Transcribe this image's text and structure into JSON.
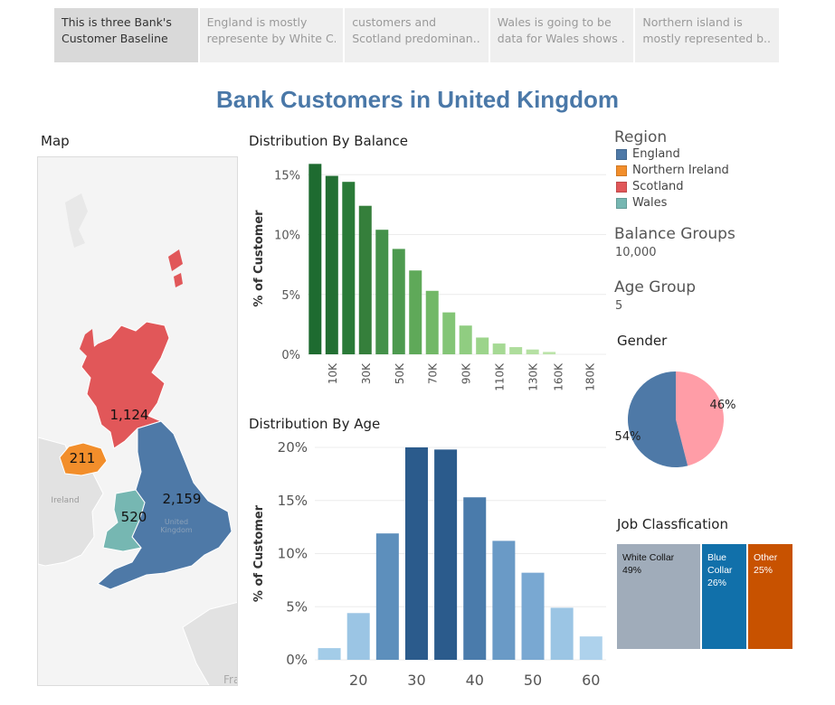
{
  "story_tabs": [
    {
      "line1": "This is three Bank's",
      "line2": "Customer Baseline",
      "active": true
    },
    {
      "line1": "England is mostly",
      "line2": "represente by White C..",
      "active": false
    },
    {
      "line1": "customers and",
      "line2": "Scotland predominan..",
      "active": false
    },
    {
      "line1": "Wales is going to be",
      "line2": "data for Wales shows ..",
      "active": false
    },
    {
      "line1": "Northern island is",
      "line2": "mostly represented b..",
      "active": false
    }
  ],
  "title": "Bank Customers in United Kingdom",
  "map": {
    "title": "Map",
    "labels": {
      "scotland": "1,124",
      "northern_ireland": "211",
      "england": "2,159",
      "wales": "520",
      "ireland": "Ireland",
      "uk_line1": "United",
      "uk_line2": "Kingdom",
      "france": "Fra"
    },
    "colors": {
      "england": "#4e79a7",
      "northern_ireland": "#f28e2b",
      "scotland": "#e15759",
      "wales": "#76b7b2"
    }
  },
  "legend": {
    "region_title": "Region",
    "regions": [
      {
        "name": "England",
        "color": "#4e79a7"
      },
      {
        "name": "Northern Ireland",
        "color": "#f28e2b"
      },
      {
        "name": "Scotland",
        "color": "#e15759"
      },
      {
        "name": "Wales",
        "color": "#76b7b2"
      }
    ],
    "balance_title": "Balance Groups",
    "balance_value": "10,000",
    "age_title": "Age Group",
    "age_value": "5"
  },
  "gender_title": "Gender",
  "job_title": "Job Classfication",
  "chart_data": [
    {
      "type": "bar",
      "title": "Distribution By Balance",
      "ylabel": "% of Customer",
      "ylim": [
        0,
        16
      ],
      "yticks": [
        "0%",
        "5%",
        "10%",
        "15%"
      ],
      "x": [
        0,
        10,
        20,
        30,
        40,
        50,
        60,
        70,
        80,
        90,
        100,
        110,
        120,
        130,
        140
      ],
      "xticklabels": [
        "10K",
        "30K",
        "50K",
        "70K",
        "90K",
        "110K",
        "130K",
        "160K",
        "180K"
      ],
      "values": [
        15.9,
        14.9,
        14.4,
        12.4,
        10.4,
        8.8,
        7.0,
        5.3,
        3.5,
        2.4,
        1.4,
        0.9,
        0.6,
        0.4,
        0.2
      ],
      "colors": [
        "#1e6b30",
        "#236f33",
        "#2a7a38",
        "#357f3b",
        "#44914a",
        "#4d9a4f",
        "#5fa959",
        "#72b867",
        "#83c576",
        "#90cd81",
        "#9cd48b",
        "#a6d994",
        "#aedd9c",
        "#b5e0a3",
        "#bce3aa"
      ]
    },
    {
      "type": "bar",
      "title": "Distribution By Age",
      "ylabel": "% of Customer",
      "ylim": [
        0,
        20
      ],
      "yticks": [
        "0%",
        "5%",
        "10%",
        "15%",
        "20%"
      ],
      "x": [
        15,
        20,
        25,
        30,
        35,
        40,
        45,
        50,
        55,
        60
      ],
      "xticklabels": [
        "20",
        "30",
        "40",
        "50",
        "60"
      ],
      "values": [
        1.1,
        4.4,
        11.9,
        20.0,
        19.8,
        15.3,
        11.2,
        8.2,
        4.9,
        2.2
      ],
      "colors": [
        "#a3cce8",
        "#9bc5e4",
        "#5d8fbc",
        "#2b5b8c",
        "#2b5b8c",
        "#4a7bab",
        "#6a9ac6",
        "#79a8d2",
        "#9bc5e4",
        "#aed2ec"
      ]
    },
    {
      "type": "pie",
      "title": "Gender",
      "slices": [
        {
          "label": "54%",
          "value": 54,
          "color": "#4e79a7"
        },
        {
          "label": "46%",
          "value": 46,
          "color": "#ff9da7"
        }
      ]
    }
  ],
  "job_classification": [
    {
      "name": "White Collar",
      "pct": "49%",
      "value": 49,
      "color": "#a0acba",
      "text_color": "#111111"
    },
    {
      "name": "Blue Collar",
      "pct": "26%",
      "value": 26,
      "color": "#1170aa",
      "text_color": "#ffffff"
    },
    {
      "name": "Other",
      "pct": "25%",
      "value": 25,
      "color": "#c85200",
      "text_color": "#ffffff"
    }
  ]
}
